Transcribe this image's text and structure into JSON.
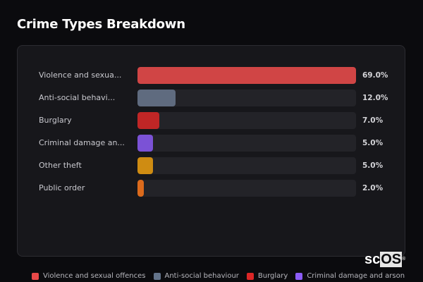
{
  "header": {
    "title": "Crime Types Breakdown"
  },
  "rows": [
    {
      "label": "Violence and sexua...",
      "value": 69.0,
      "pct": "69.0%",
      "color": "#d04545"
    },
    {
      "label": "Anti-social behavi...",
      "value": 12.0,
      "pct": "12.0%",
      "color": "#5f6b7f"
    },
    {
      "label": "Burglary",
      "value": 7.0,
      "pct": "7.0%",
      "color": "#c02626"
    },
    {
      "label": "Criminal damage an...",
      "value": 5.0,
      "pct": "5.0%",
      "color": "#7b52d6"
    },
    {
      "label": "Other theft",
      "value": 5.0,
      "pct": "5.0%",
      "color": "#cf8c12"
    },
    {
      "label": "Public order",
      "value": 2.0,
      "pct": "2.0%",
      "color": "#db6a1c"
    }
  ],
  "legend": [
    {
      "label": "Violence and sexual offences",
      "color": "#e84848"
    },
    {
      "label": "Anti-social behaviour",
      "color": "#64748b"
    },
    {
      "label": "Burglary",
      "color": "#dc2626"
    },
    {
      "label": "Criminal damage and arson",
      "color": "#8b5cf6"
    }
  ],
  "watermark": {
    "text_sc": "sc",
    "text_os": "OS",
    "reg": "®"
  },
  "chart_data": {
    "type": "bar",
    "orientation": "horizontal",
    "title": "Crime Types Breakdown",
    "categories": [
      "Violence and sexual offences",
      "Anti-social behaviour",
      "Burglary",
      "Criminal damage and arson",
      "Other theft",
      "Public order"
    ],
    "values": [
      69.0,
      12.0,
      7.0,
      5.0,
      5.0,
      2.0
    ],
    "unit": "%",
    "xlim": [
      0,
      69
    ],
    "grid": false,
    "legend_position": "bottom",
    "xlabel": "",
    "ylabel": ""
  }
}
